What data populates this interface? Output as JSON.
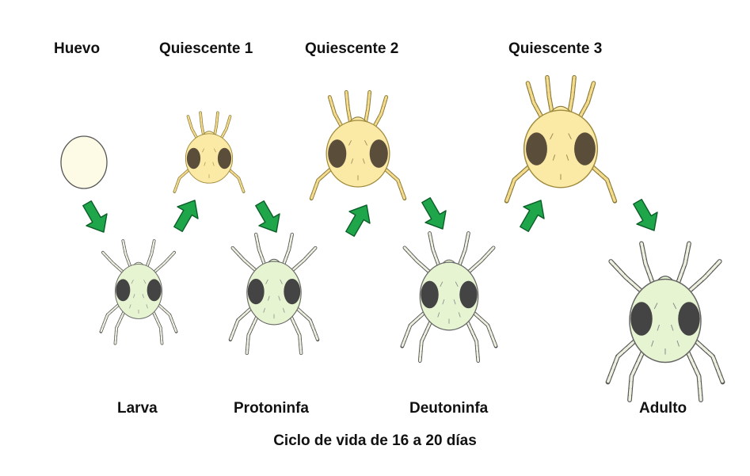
{
  "stages": {
    "egg": "Huevo",
    "quiescent1": "Quiescente 1",
    "quiescent2": "Quiescente 2",
    "quiescent3": "Quiescente 3",
    "larva": "Larva",
    "protonymph": "Protoninfa",
    "deutonymph": "Deutoninfa",
    "adult": "Adulto"
  },
  "caption": "Ciclo de vida de 16 a 20 días",
  "colors": {
    "egg_fill": "#fdfae6",
    "quiescent_body": "#fbe9a6",
    "quiescent_leg": "#f4dc8c",
    "active_body": "#e7f4d2",
    "active_leg": "#eef0df",
    "spot": "#444444",
    "arrow": "#1fa64b",
    "outline": "#555555"
  },
  "icons": {
    "stage_drawing": "mite-illustration",
    "transition": "green-arrow"
  }
}
